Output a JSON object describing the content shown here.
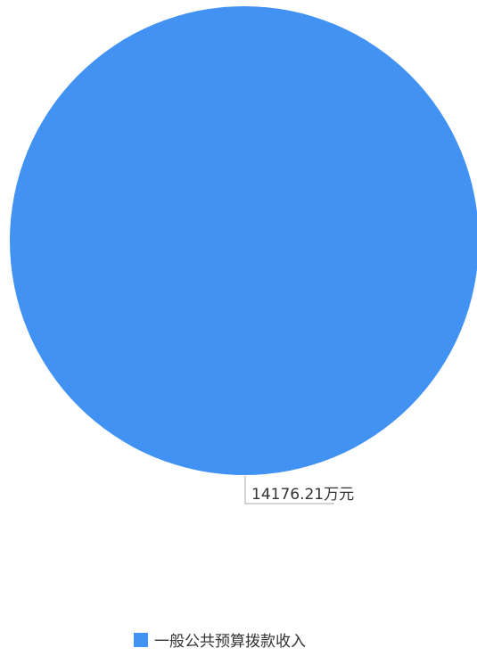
{
  "chart_data": {
    "type": "pie",
    "title": "",
    "series": [
      {
        "name": "一般公共预算拨款收入",
        "value": 14176.21,
        "label": "14176.21万元",
        "color": "#4192F2"
      }
    ],
    "legend": {
      "position": "bottom",
      "items": [
        "一般公共预算拨款收入"
      ]
    }
  }
}
